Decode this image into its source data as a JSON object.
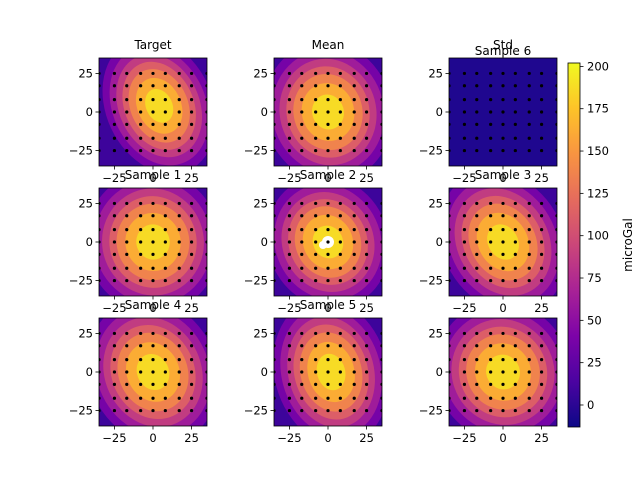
{
  "chart_data": {
    "type": "contour",
    "colormap": "plasma",
    "colorbar": {
      "label": "microGal",
      "range": [
        -13,
        202
      ],
      "ticks": [
        0,
        25,
        50,
        75,
        100,
        125,
        150,
        175,
        200
      ],
      "tick_labels": [
        "0",
        "25",
        "50",
        "75",
        "100",
        "125",
        "150",
        "175",
        "200"
      ]
    },
    "axes": {
      "xlim": [
        -35,
        35
      ],
      "ylim": [
        -35,
        35
      ],
      "x_ticks": [
        -25,
        0,
        25
      ],
      "x_tick_labels": [
        "−25",
        "0",
        "25"
      ],
      "y_ticks": [
        25,
        0,
        -25
      ],
      "y_tick_labels": [
        "25",
        "0",
        "−25"
      ]
    },
    "grid_points": {
      "x": [
        -25,
        -17,
        -8,
        0,
        8,
        17,
        25
      ],
      "y": [
        -25,
        -17,
        -8,
        0,
        8,
        17,
        25
      ],
      "edge_x": [
        -35,
        35
      ]
    },
    "panels": [
      {
        "title": "Target",
        "kind": "field",
        "cx": 4,
        "cy": 4,
        "rx": 30,
        "ry": 40,
        "rot": -25,
        "peak": 200,
        "hole": false
      },
      {
        "title": "Mean",
        "kind": "field",
        "cx": 0,
        "cy": 0,
        "rx": 36,
        "ry": 40,
        "rot": -15,
        "peak": 198,
        "hole": false
      },
      {
        "title": "Std",
        "subtitle": "Sample 6",
        "kind": "flat",
        "value": -13
      },
      {
        "title": "Sample 1",
        "kind": "field",
        "cx": 0,
        "cy": 0,
        "rx": 38,
        "ry": 40,
        "rot": -10,
        "peak": 198,
        "hole": false
      },
      {
        "title": "Sample 2",
        "kind": "field",
        "cx": 0,
        "cy": 0,
        "rx": 34,
        "ry": 38,
        "rot": -25,
        "peak": 200,
        "hole": true
      },
      {
        "title": "Sample 3",
        "kind": "field",
        "cx": 0,
        "cy": 0,
        "rx": 34,
        "ry": 42,
        "rot": -30,
        "peak": 198,
        "hole": false
      },
      {
        "title": "Sample 4",
        "kind": "field",
        "cx": 0,
        "cy": 0,
        "rx": 36,
        "ry": 42,
        "rot": -25,
        "peak": 198,
        "hole": false
      },
      {
        "title": "Sample 5",
        "kind": "field",
        "cx": 2,
        "cy": 0,
        "rx": 32,
        "ry": 42,
        "rot": -15,
        "peak": 198,
        "hole": false
      },
      {
        "title": "",
        "kind": "field",
        "cx": 0,
        "cy": 0,
        "rx": 38,
        "ry": 40,
        "rot": -30,
        "peak": 198,
        "hole": false
      }
    ]
  }
}
